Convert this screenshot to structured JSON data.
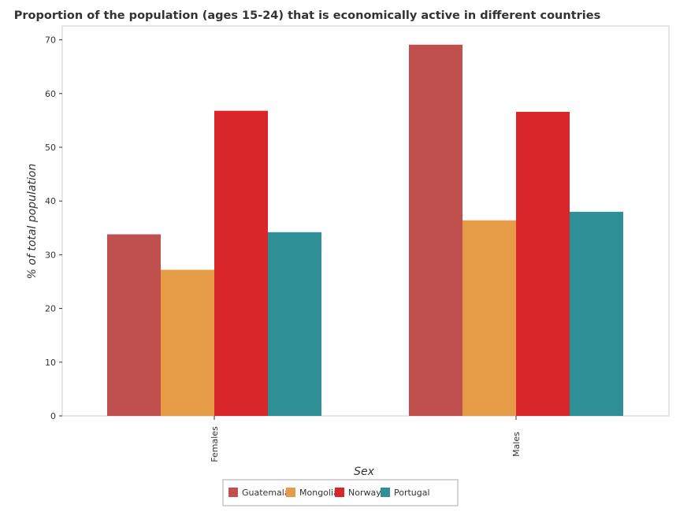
{
  "chart_data": {
    "type": "bar",
    "title": "Proportion of the population (ages 15-24) that is economically active in different countries",
    "xlabel": "Sex",
    "ylabel": "% of total population",
    "categories": [
      "Females",
      "Males"
    ],
    "series": [
      {
        "name": "Guatemala",
        "color": "#c0504d",
        "values": [
          33.8,
          69.1
        ]
      },
      {
        "name": "Mongolia",
        "color": "#e69b47",
        "values": [
          27.2,
          36.4
        ]
      },
      {
        "name": "Norway",
        "color": "#d9262b",
        "values": [
          56.8,
          56.6
        ]
      },
      {
        "name": "Portugal",
        "color": "#2f8f97",
        "values": [
          34.2,
          38.0
        ]
      }
    ],
    "ylim": [
      0,
      73
    ],
    "yticks": [
      0,
      10,
      20,
      30,
      40,
      50,
      60,
      70
    ],
    "grid": false,
    "legend_position": "bottom-center"
  }
}
